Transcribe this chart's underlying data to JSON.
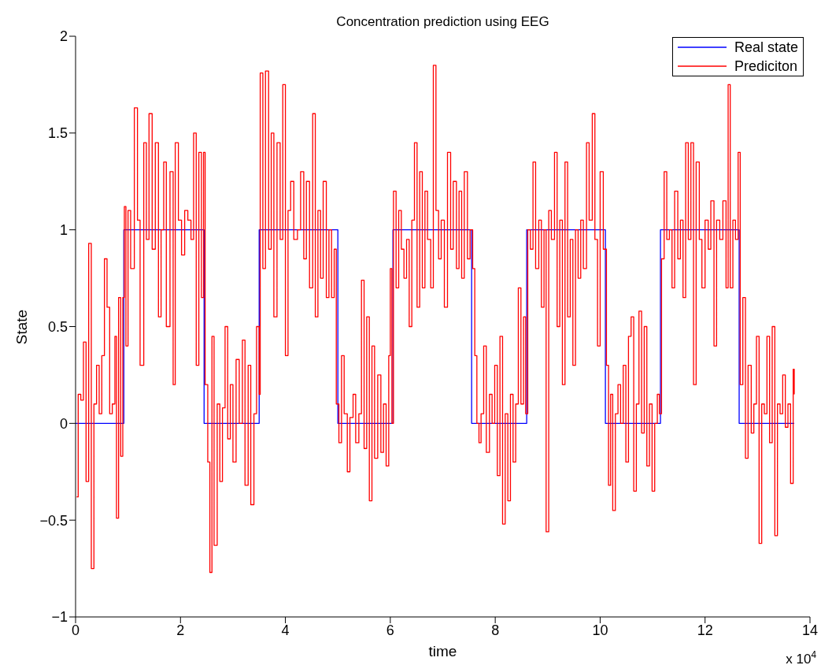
{
  "chart_data": {
    "type": "step",
    "title": "Concentration prediction using EEG",
    "xlabel": "time",
    "ylabel": "State",
    "annotations": [
      "x 10$^{4}$"
    ],
    "xlim": [
      0,
      14
    ],
    "xticks": [
      0,
      2,
      4,
      6,
      8,
      10,
      12,
      14
    ],
    "ylim": [
      -1,
      2
    ],
    "yticks": [
      -1,
      -0.5,
      0,
      0.5,
      1,
      1.5,
      2
    ],
    "grid": false,
    "legend": "top right",
    "marker": "none",
    "line_style": "solid",
    "series": [
      {
        "name": "Real state",
        "color": "#0000ff",
        "x": [
          0,
          0.92,
          2.45,
          3.5,
          5.0,
          6.05,
          7.55,
          8.6,
          10.1,
          11.15,
          12.65,
          13.7
        ],
        "values": [
          0,
          1,
          0,
          1,
          0,
          1,
          0,
          1,
          0,
          1,
          0,
          0
        ]
      },
      {
        "name": "Prediciton",
        "color": "#ff0000",
        "x": [
          0.02,
          0.05,
          0.1,
          0.15,
          0.2,
          0.25,
          0.3,
          0.35,
          0.4,
          0.45,
          0.5,
          0.55,
          0.6,
          0.65,
          0.7,
          0.75,
          0.78,
          0.82,
          0.86,
          0.9,
          0.93,
          0.96,
          1.0,
          1.05,
          1.12,
          1.18,
          1.23,
          1.3,
          1.35,
          1.4,
          1.46,
          1.52,
          1.58,
          1.63,
          1.68,
          1.73,
          1.8,
          1.86,
          1.9,
          1.96,
          2.02,
          2.08,
          2.14,
          2.2,
          2.25,
          2.3,
          2.35,
          2.4,
          2.44,
          2.47,
          2.52,
          2.56,
          2.6,
          2.64,
          2.7,
          2.75,
          2.8,
          2.85,
          2.9,
          2.95,
          3.0,
          3.06,
          3.12,
          3.18,
          3.23,
          3.29,
          3.34,
          3.4,
          3.45,
          3.5,
          3.52,
          3.57,
          3.62,
          3.68,
          3.73,
          3.78,
          3.84,
          3.9,
          3.95,
          4.0,
          4.05,
          4.1,
          4.16,
          4.23,
          4.29,
          4.35,
          4.4,
          4.46,
          4.52,
          4.57,
          4.62,
          4.67,
          4.72,
          4.78,
          4.83,
          4.88,
          4.93,
          4.97,
          5.02,
          5.07,
          5.12,
          5.18,
          5.23,
          5.29,
          5.34,
          5.4,
          5.45,
          5.5,
          5.55,
          5.6,
          5.65,
          5.7,
          5.76,
          5.82,
          5.87,
          5.92,
          5.97,
          6.0,
          6.03,
          6.06,
          6.11,
          6.16,
          6.21,
          6.26,
          6.31,
          6.36,
          6.41,
          6.46,
          6.51,
          6.56,
          6.61,
          6.66,
          6.71,
          6.77,
          6.82,
          6.87,
          6.92,
          6.97,
          7.03,
          7.09,
          7.15,
          7.2,
          7.26,
          7.31,
          7.36,
          7.41,
          7.47,
          7.52,
          7.57,
          7.61,
          7.65,
          7.69,
          7.73,
          7.78,
          7.83,
          7.89,
          7.94,
          7.99,
          8.04,
          8.09,
          8.14,
          8.19,
          8.24,
          8.29,
          8.34,
          8.39,
          8.44,
          8.49,
          8.54,
          8.58,
          8.62,
          8.67,
          8.72,
          8.77,
          8.83,
          8.88,
          8.93,
          8.97,
          9.02,
          9.07,
          9.13,
          9.18,
          9.23,
          9.28,
          9.33,
          9.38,
          9.43,
          9.48,
          9.53,
          9.58,
          9.63,
          9.68,
          9.74,
          9.79,
          9.85,
          9.9,
          9.95,
          10.0,
          10.06,
          10.12,
          10.16,
          10.2,
          10.24,
          10.29,
          10.34,
          10.39,
          10.44,
          10.49,
          10.54,
          10.59,
          10.64,
          10.69,
          10.74,
          10.79,
          10.84,
          10.89,
          10.94,
          10.99,
          11.04,
          11.09,
          11.13,
          11.17,
          11.22,
          11.27,
          11.32,
          11.37,
          11.42,
          11.48,
          11.53,
          11.58,
          11.63,
          11.68,
          11.73,
          11.78,
          11.83,
          11.89,
          11.94,
          12.0,
          12.06,
          12.11,
          12.17,
          12.22,
          12.28,
          12.34,
          12.4,
          12.44,
          12.48,
          12.53,
          12.58,
          12.63,
          12.67,
          12.72,
          12.77,
          12.82,
          12.88,
          12.93,
          12.98,
          13.03,
          13.08,
          13.13,
          13.18,
          13.23,
          13.28,
          13.33,
          13.38,
          13.43,
          13.48,
          13.53,
          13.58,
          13.63,
          13.68,
          13.7
        ],
        "values": [
          -0.38,
          0.15,
          0.12,
          0.42,
          -0.3,
          0.93,
          -0.75,
          0.1,
          0.3,
          0.05,
          0.35,
          0.85,
          0.6,
          0.05,
          0.1,
          0.45,
          -0.49,
          0.65,
          -0.17,
          0.65,
          1.12,
          0.4,
          1.1,
          0.8,
          1.63,
          1.05,
          0.3,
          1.45,
          0.95,
          1.6,
          0.9,
          1.45,
          0.55,
          1.0,
          1.35,
          0.5,
          1.3,
          0.2,
          1.45,
          1.05,
          0.87,
          1.1,
          1.05,
          0.95,
          1.5,
          0.3,
          1.4,
          0.65,
          1.4,
          0.2,
          -0.2,
          -0.77,
          0.45,
          -0.63,
          0.1,
          -0.3,
          0.08,
          0.5,
          -0.08,
          0.2,
          -0.2,
          0.33,
          0.0,
          0.43,
          -0.32,
          0.3,
          -0.42,
          0.05,
          0.5,
          0.15,
          1.81,
          0.8,
          1.82,
          0.9,
          1.5,
          0.55,
          1.45,
          0.95,
          1.75,
          0.35,
          1.1,
          1.25,
          0.95,
          1.0,
          1.3,
          0.85,
          1.25,
          0.7,
          1.6,
          0.55,
          1.1,
          0.75,
          1.25,
          0.65,
          1.0,
          0.65,
          0.9,
          0.1,
          -0.1,
          0.35,
          0.05,
          -0.25,
          0.03,
          0.15,
          -0.1,
          0.05,
          0.74,
          -0.13,
          0.55,
          -0.4,
          0.4,
          -0.18,
          0.25,
          -0.15,
          0.1,
          -0.22,
          0.35,
          0.8,
          0.0,
          1.2,
          0.7,
          1.1,
          0.9,
          0.75,
          0.95,
          0.5,
          1.05,
          1.45,
          0.6,
          1.3,
          0.7,
          1.2,
          0.95,
          0.7,
          1.85,
          1.1,
          0.85,
          1.05,
          0.6,
          1.4,
          0.9,
          1.25,
          0.8,
          1.2,
          0.75,
          1.3,
          0.85,
          1.0,
          0.8,
          0.35,
          0.0,
          -0.1,
          0.05,
          0.4,
          -0.15,
          0.15,
          0.0,
          0.3,
          -0.27,
          0.45,
          -0.52,
          0.05,
          -0.4,
          0.15,
          -0.2,
          0.1,
          0.7,
          0.1,
          0.55,
          0.05,
          1.0,
          0.9,
          1.35,
          0.8,
          1.05,
          0.6,
          1.0,
          -0.56,
          1.1,
          0.95,
          1.4,
          0.5,
          1.05,
          0.2,
          1.35,
          0.55,
          0.95,
          0.3,
          1.0,
          0.75,
          1.05,
          0.8,
          1.45,
          1.05,
          1.6,
          0.95,
          0.4,
          1.3,
          0.9,
          0.3,
          -0.32,
          0.15,
          -0.45,
          0.05,
          0.2,
          0.0,
          0.3,
          -0.2,
          0.45,
          0.55,
          -0.35,
          0.1,
          0.58,
          -0.05,
          0.5,
          -0.22,
          0.1,
          -0.35,
          0.0,
          0.15,
          0.05,
          0.85,
          1.3,
          0.95,
          1.0,
          0.7,
          1.2,
          0.85,
          1.05,
          0.65,
          1.45,
          0.95,
          1.45,
          0.2,
          1.35,
          0.95,
          0.7,
          1.05,
          0.9,
          1.15,
          0.4,
          1.05,
          0.95,
          1.15,
          0.7,
          1.75,
          0.7,
          1.05,
          0.95,
          1.4,
          0.2,
          0.65,
          -0.18,
          0.3,
          -0.05,
          0.1,
          0.45,
          -0.62,
          0.1,
          0.05,
          0.45,
          -0.1,
          0.5,
          -0.58,
          0.1,
          0.05,
          0.25,
          -0.02,
          0.1,
          -0.31,
          0.28,
          0.15
        ]
      }
    ]
  }
}
